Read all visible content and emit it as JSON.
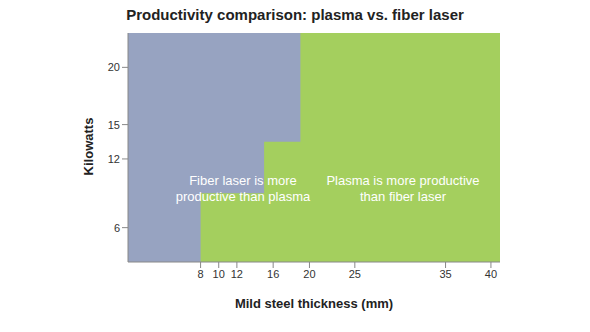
{
  "chart_data": {
    "type": "area",
    "title": "Productivity comparison: plasma vs. fiber laser",
    "x_label": "Mild steel thickness (mm)",
    "y_label": "Kilowatts",
    "x": [
      0,
      8,
      15,
      19,
      41
    ],
    "series": [
      {
        "name": "Fiber laser is more productive than plasma",
        "color": "#97a3c1",
        "line_style": "step",
        "values": [
          23,
          23,
          23,
          23,
          23
        ]
      },
      {
        "name": "Plasma is more productive than fiber laser",
        "color": "#a4cf5e",
        "line_style": "step",
        "values": [
          3,
          9,
          13.5,
          23,
          23
        ]
      }
    ],
    "xlim": [
      0,
      41
    ],
    "xticks": [
      8,
      10,
      12,
      16,
      20,
      25,
      35,
      40
    ],
    "ylim": [
      3,
      23
    ],
    "yticks": [
      6,
      12,
      15,
      20
    ],
    "grid": false
  }
}
